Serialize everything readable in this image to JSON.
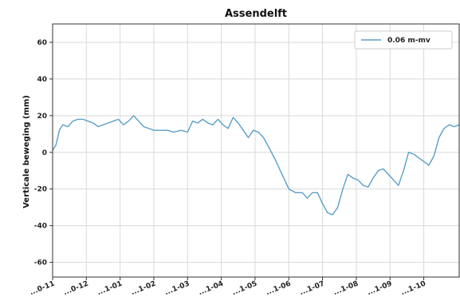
{
  "chart_data": {
    "type": "line",
    "title": "Assendelft",
    "xlabel": "",
    "ylabel": "Verticale beweging (mm)",
    "ylim": [
      -68,
      70
    ],
    "yticks": [
      -60,
      -40,
      -20,
      0,
      20,
      40,
      60
    ],
    "xlim": [
      0,
      12.05
    ],
    "x_tick_positions": [
      0,
      1,
      2,
      3,
      4,
      5,
      6,
      7,
      8,
      9,
      10,
      11
    ],
    "x_tick_labels": [
      "...0-11",
      "...0-12",
      "...1-01",
      "...1-02",
      "...1-03",
      "...1-04",
      "...1-05",
      "...1-06",
      "...1-07",
      "...1-08",
      "...1-09",
      "...1-10"
    ],
    "grid": true,
    "legend_position": "top-right",
    "series": [
      {
        "name": "0.06 m-mv",
        "color": "#5b9fc6",
        "x": [
          0,
          0.1,
          0.2,
          0.3,
          0.45,
          0.6,
          0.75,
          0.9,
          1.05,
          1.2,
          1.35,
          1.5,
          1.65,
          1.8,
          1.95,
          2.1,
          2.25,
          2.4,
          2.55,
          2.7,
          2.85,
          3.0,
          3.2,
          3.4,
          3.6,
          3.8,
          4.0,
          4.15,
          4.3,
          4.45,
          4.6,
          4.75,
          4.9,
          5.05,
          5.2,
          5.35,
          5.5,
          5.65,
          5.8,
          5.95,
          6.1,
          6.25,
          6.4,
          6.6,
          6.8,
          7.0,
          7.2,
          7.4,
          7.55,
          7.7,
          7.85,
          8.0,
          8.15,
          8.3,
          8.45,
          8.6,
          8.75,
          8.9,
          9.05,
          9.2,
          9.35,
          9.5,
          9.65,
          9.8,
          9.95,
          10.1,
          10.25,
          10.4,
          10.55,
          10.7,
          10.85,
          11.0,
          11.15,
          11.3,
          11.45,
          11.6,
          11.75,
          11.9,
          12.05
        ],
        "y": [
          1,
          4,
          12,
          15,
          14,
          17,
          18,
          18,
          17,
          16,
          14,
          15,
          16,
          17,
          18,
          15,
          17,
          20,
          17,
          14,
          13,
          12,
          12,
          12,
          11,
          12,
          11,
          17,
          16,
          18,
          16,
          15,
          18,
          15,
          13,
          19,
          16,
          12,
          8,
          12,
          11,
          8,
          3,
          -4,
          -12,
          -20,
          -22,
          -22,
          -25,
          -22,
          -22,
          -28,
          -33,
          -34,
          -30,
          -20,
          -12,
          -14,
          -15,
          -18,
          -19,
          -14,
          -10,
          -9,
          -12,
          -15,
          -18,
          -10,
          0,
          -1,
          -3,
          -5,
          -7,
          -2,
          8,
          13,
          15,
          14,
          15
        ]
      }
    ]
  }
}
